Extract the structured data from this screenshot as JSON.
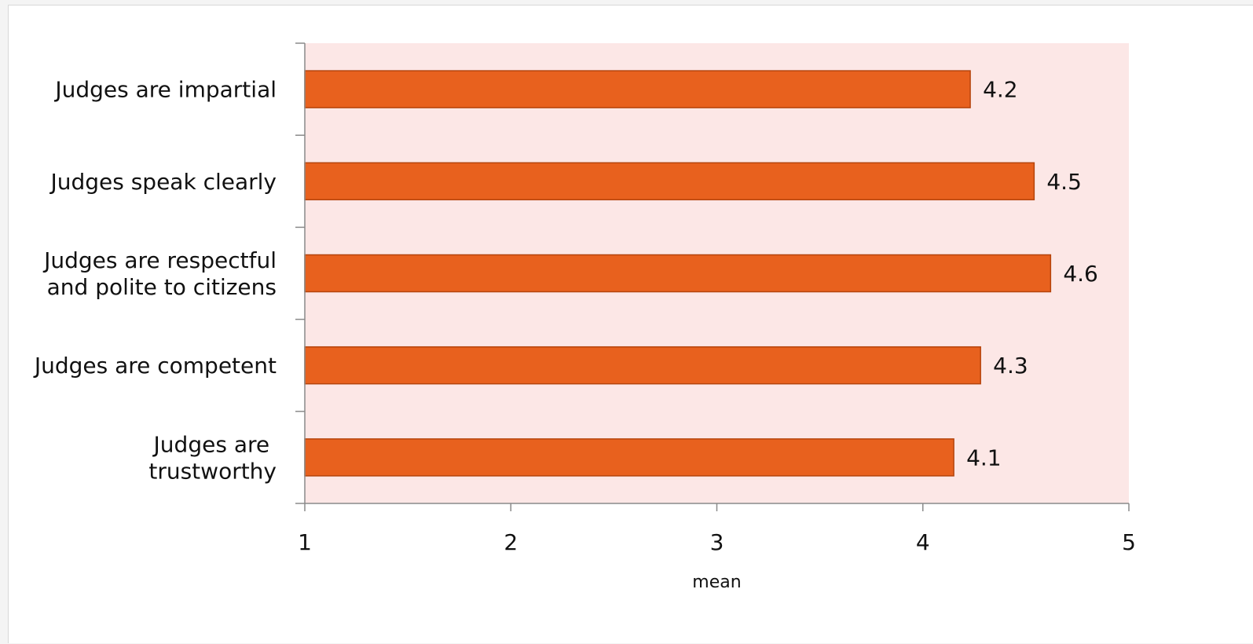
{
  "chart_data": {
    "type": "bar",
    "orientation": "horizontal",
    "categories": [
      [
        "Judges are impartial"
      ],
      [
        "Judges speak clearly"
      ],
      [
        "Judges are respectful",
        "and polite to citizens"
      ],
      [
        "Judges are competent"
      ],
      [
        "Judges are ",
        "trustworthy"
      ]
    ],
    "values": [
      4.23,
      4.54,
      4.62,
      4.28,
      4.15
    ],
    "data_labels": [
      "4.2",
      "4.5",
      "4.6",
      "4.3",
      "4.1"
    ],
    "xlim": [
      1,
      5
    ],
    "xticks": [
      1,
      2,
      3,
      4,
      5
    ],
    "xlabel": "mean",
    "title": "",
    "ylabel": "",
    "grid": false,
    "colors": {
      "bar_fill": "#e8611e",
      "bar_stroke": "#b5440c",
      "plot_background": "#fce7e6",
      "axis": "#8a8a8a"
    }
  }
}
